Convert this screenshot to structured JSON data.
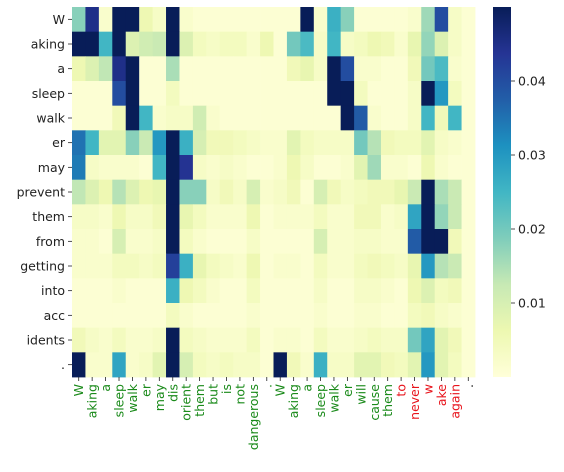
{
  "chart_data": {
    "type": "heatmap",
    "title": "",
    "xlabel": "",
    "ylabel": "",
    "y_labels": [
      "W",
      "aking",
      "a",
      "sleep",
      "walk",
      "er",
      "may",
      "prevent",
      "them",
      "from",
      "getting",
      "into",
      "acc",
      "idents",
      "."
    ],
    "x_labels": [
      "W",
      "aking",
      "a",
      "sleep",
      "walk",
      "er",
      "may",
      "dis",
      "orient",
      "them",
      "but",
      "is",
      "not",
      "dangerous",
      ".",
      "W",
      "aking",
      "a",
      "sleep",
      "walk",
      "er",
      "will",
      "cause",
      "them",
      "to",
      "never",
      "w",
      "ake",
      "again",
      "."
    ],
    "x_label_colors": [
      "#1a8a1a",
      "#1a8a1a",
      "#1a8a1a",
      "#1a8a1a",
      "#1a8a1a",
      "#1a8a1a",
      "#1a8a1a",
      "#1a8a1a",
      "#1a8a1a",
      "#1a8a1a",
      "#1a8a1a",
      "#1a8a1a",
      "#1a8a1a",
      "#1a8a1a",
      "#1a8a1a",
      "#1a8a1a",
      "#1a8a1a",
      "#1a8a1a",
      "#1a8a1a",
      "#1a8a1a",
      "#1a8a1a",
      "#1a8a1a",
      "#1a8a1a",
      "#1a8a1a",
      "#e8141c",
      "#e8141c",
      "#e8141c",
      "#e8141c",
      "#e8141c",
      "#222222"
    ],
    "colorscale": "YlGnBu",
    "vmin": 0.0,
    "vmax": 0.05,
    "colorbar_ticks": [
      0.01,
      0.02,
      0.03,
      0.04
    ],
    "colorbar_tick_labels": [
      "0.01",
      "0.02",
      "0.03",
      "0.04"
    ],
    "values": [
      [
        0.018,
        0.045,
        0.002,
        0.05,
        0.05,
        0.006,
        0.003,
        0.05,
        0.002,
        0.001,
        0.001,
        0.001,
        0.001,
        0.001,
        0.001,
        0.001,
        0.001,
        0.05,
        0.002,
        0.026,
        0.018,
        0.001,
        0.001,
        0.001,
        0.001,
        0.002,
        0.016,
        0.04,
        0.003,
        0.001
      ],
      [
        0.05,
        0.05,
        0.025,
        0.05,
        0.009,
        0.011,
        0.012,
        0.05,
        0.009,
        0.004,
        0.003,
        0.004,
        0.004,
        0.002,
        0.006,
        0.001,
        0.02,
        0.024,
        0.003,
        0.025,
        0.003,
        0.004,
        0.006,
        0.005,
        0.002,
        0.007,
        0.017,
        0.009,
        0.003,
        0.001
      ],
      [
        0.006,
        0.009,
        0.013,
        0.045,
        0.05,
        0.001,
        0.001,
        0.015,
        0.001,
        0.001,
        0.001,
        0.001,
        0.001,
        0.001,
        0.001,
        0.001,
        0.005,
        0.007,
        0.003,
        0.05,
        0.04,
        0.002,
        0.002,
        0.001,
        0.001,
        0.005,
        0.02,
        0.024,
        0.002,
        0.001
      ],
      [
        0.001,
        0.001,
        0.001,
        0.04,
        0.05,
        0.001,
        0.001,
        0.004,
        0.001,
        0.001,
        0.001,
        0.001,
        0.001,
        0.001,
        0.001,
        0.001,
        0.001,
        0.001,
        0.001,
        0.05,
        0.05,
        0.004,
        0.001,
        0.001,
        0.001,
        0.003,
        0.05,
        0.03,
        0.004,
        0.001
      ],
      [
        0.001,
        0.001,
        0.001,
        0.005,
        0.05,
        0.025,
        0.002,
        0.003,
        0.003,
        0.011,
        0.002,
        0.001,
        0.001,
        0.001,
        0.001,
        0.001,
        0.001,
        0.001,
        0.001,
        0.001,
        0.05,
        0.038,
        0.002,
        0.001,
        0.001,
        0.003,
        0.025,
        0.005,
        0.025,
        0.001
      ],
      [
        0.035,
        0.025,
        0.008,
        0.008,
        0.018,
        0.012,
        0.03,
        0.05,
        0.026,
        0.01,
        0.005,
        0.005,
        0.004,
        0.003,
        0.002,
        0.002,
        0.008,
        0.004,
        0.003,
        0.003,
        0.003,
        0.02,
        0.014,
        0.005,
        0.004,
        0.004,
        0.008,
        0.003,
        0.002,
        0.001
      ],
      [
        0.034,
        0.003,
        0.002,
        0.002,
        0.002,
        0.001,
        0.025,
        0.05,
        0.044,
        0.003,
        0.002,
        0.003,
        0.002,
        0.001,
        0.001,
        0.002,
        0.006,
        0.003,
        0.001,
        0.001,
        0.002,
        0.008,
        0.016,
        0.002,
        0.002,
        0.001,
        0.006,
        0.002,
        0.001,
        0.001
      ],
      [
        0.013,
        0.009,
        0.006,
        0.014,
        0.009,
        0.006,
        0.007,
        0.05,
        0.018,
        0.018,
        0.003,
        0.005,
        0.003,
        0.01,
        0.002,
        0.003,
        0.005,
        0.001,
        0.01,
        0.005,
        0.003,
        0.004,
        0.005,
        0.005,
        0.007,
        0.012,
        0.05,
        0.015,
        0.012,
        0.001
      ],
      [
        0.003,
        0.003,
        0.002,
        0.006,
        0.003,
        0.003,
        0.005,
        0.05,
        0.007,
        0.004,
        0.002,
        0.002,
        0.002,
        0.006,
        0.001,
        0.002,
        0.002,
        0.002,
        0.004,
        0.002,
        0.002,
        0.005,
        0.005,
        0.002,
        0.003,
        0.028,
        0.05,
        0.017,
        0.012,
        0.001
      ],
      [
        0.002,
        0.002,
        0.001,
        0.01,
        0.002,
        0.002,
        0.003,
        0.05,
        0.004,
        0.002,
        0.001,
        0.001,
        0.001,
        0.003,
        0.001,
        0.001,
        0.001,
        0.001,
        0.01,
        0.002,
        0.002,
        0.003,
        0.003,
        0.002,
        0.002,
        0.038,
        0.05,
        0.05,
        0.005,
        0.001
      ],
      [
        0.002,
        0.002,
        0.002,
        0.004,
        0.004,
        0.003,
        0.004,
        0.042,
        0.026,
        0.007,
        0.004,
        0.003,
        0.002,
        0.006,
        0.001,
        0.002,
        0.002,
        0.001,
        0.004,
        0.002,
        0.002,
        0.004,
        0.005,
        0.004,
        0.003,
        0.007,
        0.03,
        0.014,
        0.012,
        0.001
      ],
      [
        0.001,
        0.001,
        0.001,
        0.002,
        0.001,
        0.001,
        0.001,
        0.026,
        0.006,
        0.004,
        0.002,
        0.001,
        0.001,
        0.004,
        0.001,
        0.001,
        0.001,
        0.001,
        0.003,
        0.001,
        0.001,
        0.003,
        0.003,
        0.002,
        0.001,
        0.006,
        0.009,
        0.004,
        0.005,
        0.001
      ],
      [
        0.001,
        0.001,
        0.001,
        0.001,
        0.001,
        0.001,
        0.001,
        0.004,
        0.002,
        0.001,
        0.001,
        0.001,
        0.001,
        0.002,
        0.001,
        0.001,
        0.001,
        0.001,
        0.002,
        0.001,
        0.001,
        0.002,
        0.002,
        0.001,
        0.001,
        0.004,
        0.005,
        0.003,
        0.002,
        0.001
      ],
      [
        0.005,
        0.003,
        0.002,
        0.004,
        0.002,
        0.002,
        0.003,
        0.05,
        0.004,
        0.003,
        0.002,
        0.002,
        0.002,
        0.004,
        0.001,
        0.002,
        0.002,
        0.001,
        0.004,
        0.002,
        0.002,
        0.003,
        0.004,
        0.003,
        0.003,
        0.02,
        0.028,
        0.008,
        0.005,
        0.001
      ],
      [
        0.05,
        0.002,
        0.002,
        0.028,
        0.002,
        0.003,
        0.008,
        0.05,
        0.01,
        0.004,
        0.003,
        0.004,
        0.003,
        0.003,
        0.001,
        0.05,
        0.005,
        0.002,
        0.026,
        0.003,
        0.003,
        0.008,
        0.008,
        0.005,
        0.004,
        0.008,
        0.03,
        0.008,
        0.004,
        0.001
      ]
    ]
  }
}
